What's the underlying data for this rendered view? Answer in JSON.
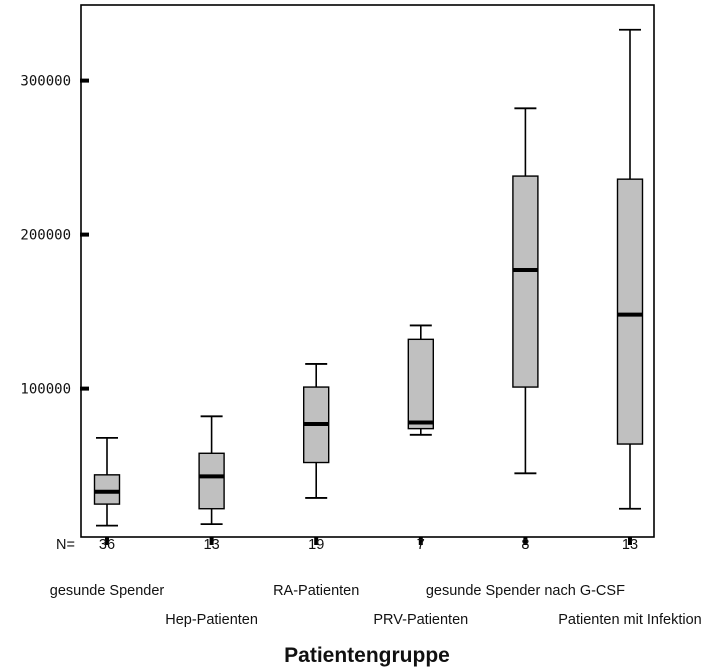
{
  "chart_data": {
    "type": "box",
    "xlabel": "Patientengruppe",
    "ylabel": "",
    "ylim": [
      0,
      345000
    ],
    "yticks": [
      100000,
      200000,
      300000
    ],
    "ytick_labels": [
      "100000",
      "200000",
      "300000"
    ],
    "n_prefix": "N=",
    "box_color": "#c0c0c0",
    "categories": [
      "gesunde Spender",
      "Hep-Patienten",
      "RA-Patienten",
      "PRV-Patienten",
      "gesunde Spender nach G-CSF",
      "Patienten mit Infektion"
    ],
    "n": [
      "36",
      "13",
      "19",
      "7",
      "8",
      "13"
    ],
    "boxes": [
      {
        "min": 11000,
        "q1": 25000,
        "median": 33000,
        "q3": 44000,
        "max": 68000
      },
      {
        "min": 12000,
        "q1": 22000,
        "median": 43000,
        "q3": 58000,
        "max": 82000
      },
      {
        "min": 29000,
        "q1": 52000,
        "median": 77000,
        "q3": 101000,
        "max": 116000
      },
      {
        "min": 70000,
        "q1": 74000,
        "median": 78000,
        "q3": 132000,
        "max": 141000
      },
      {
        "min": 45000,
        "q1": 101000,
        "median": 177000,
        "q3": 238000,
        "max": 282000
      },
      {
        "min": 22000,
        "q1": 64000,
        "median": 148000,
        "q3": 236000,
        "max": 333000
      }
    ]
  }
}
